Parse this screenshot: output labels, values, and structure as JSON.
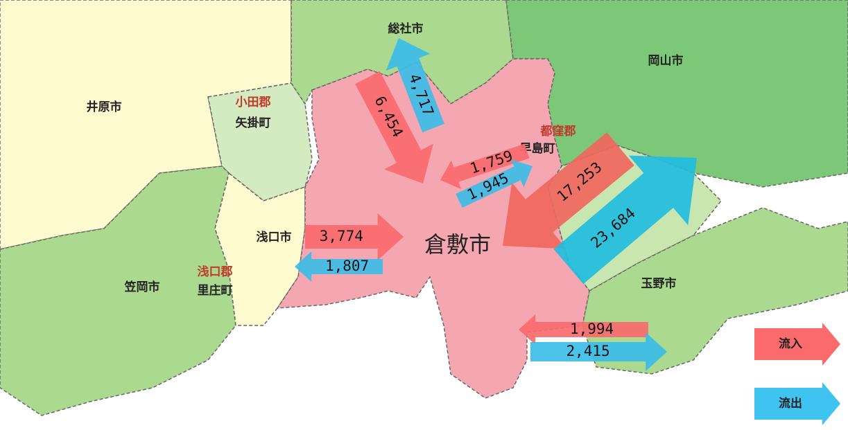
{
  "regions": [
    {
      "label": "井原市"
    },
    {
      "label": "小田郡"
    },
    {
      "label": "矢掛町"
    },
    {
      "label": "総社市"
    },
    {
      "label": "岡山市"
    },
    {
      "label": "都窪郡"
    },
    {
      "label": "早島町"
    },
    {
      "label": "浅口市"
    },
    {
      "label": "浅口郡"
    },
    {
      "label": "里庄町"
    },
    {
      "label": "笠岡市"
    },
    {
      "label": "倉敷市"
    },
    {
      "label": "玉野市"
    }
  ],
  "flows": [
    {
      "label": "4,717",
      "color": "#3cbde8"
    },
    {
      "label": "6,454",
      "color": "#f86a6e"
    },
    {
      "label": "1,759",
      "color": "#f86a6e"
    },
    {
      "label": "1,945",
      "color": "#3cbde8"
    },
    {
      "label": "17,253",
      "color": "#f0675e"
    },
    {
      "label": "23,684",
      "color": "#22bde0"
    },
    {
      "label": "3,774",
      "color": "#f86a6e"
    },
    {
      "label": "1,807",
      "color": "#3cbde8"
    },
    {
      "label": "1,994",
      "color": "#f86a6e"
    },
    {
      "label": "2,415",
      "color": "#3cbde8"
    }
  ],
  "legend": [
    {
      "label": "流入",
      "color": "#fb6b6e"
    },
    {
      "label": "流出",
      "color": "#3fc3f0"
    }
  ]
}
